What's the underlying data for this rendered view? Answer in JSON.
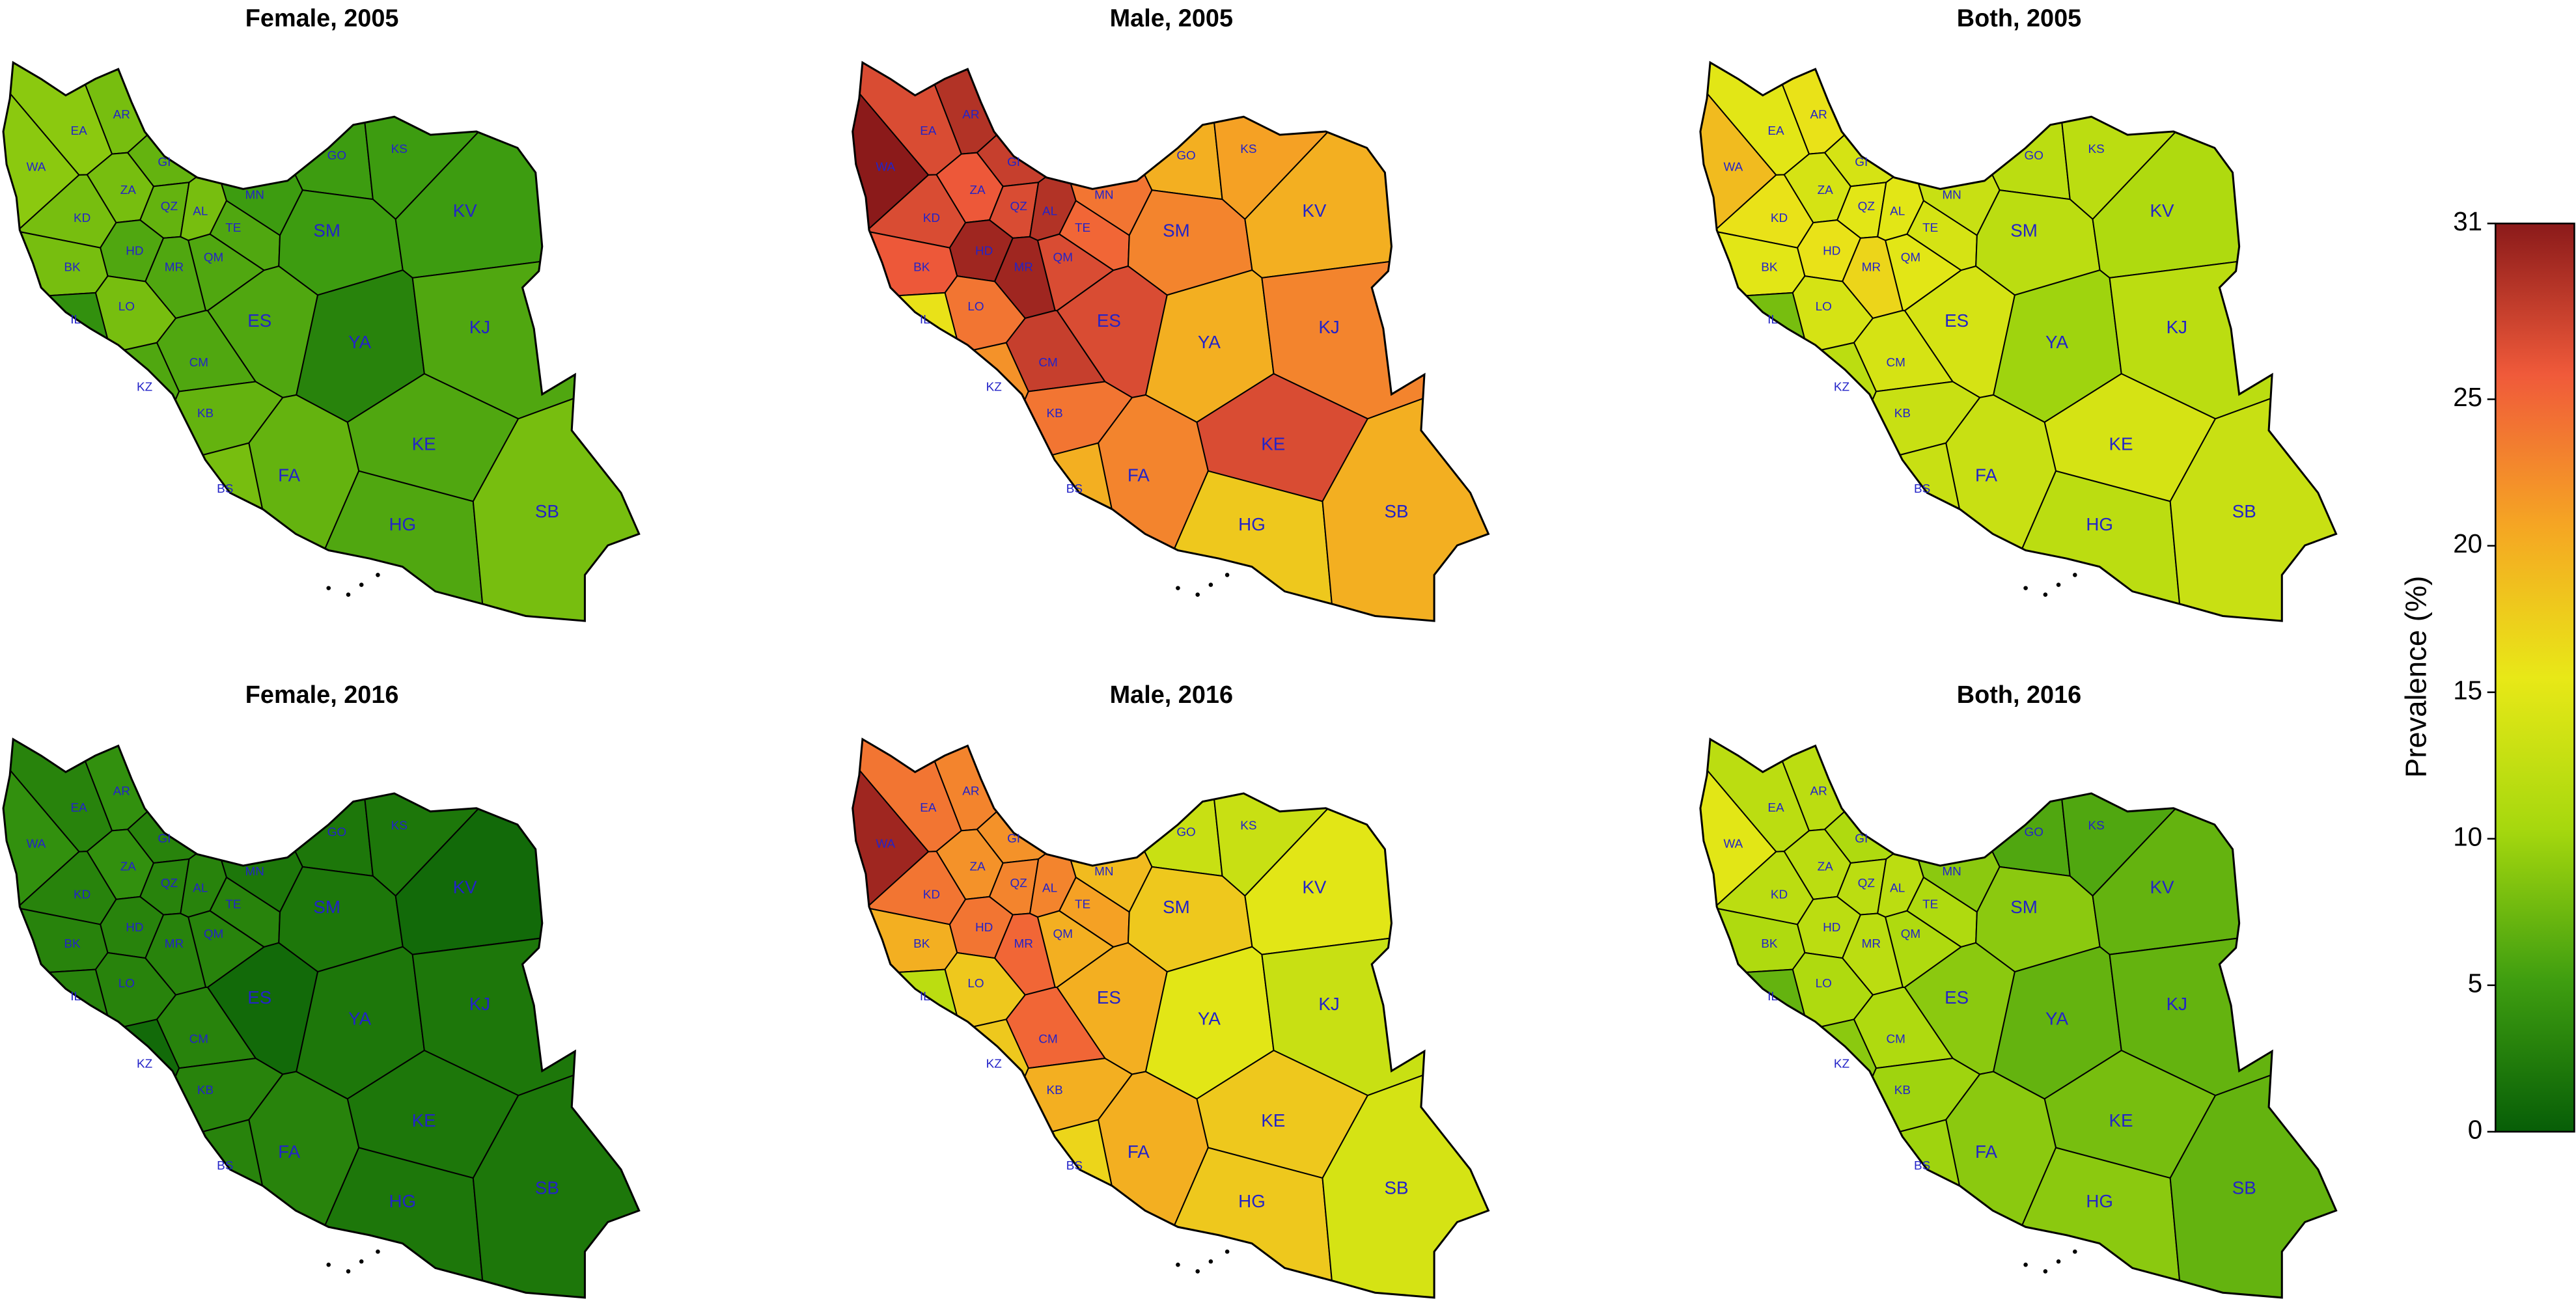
{
  "regions": [
    "EA",
    "AR",
    "WA",
    "GI",
    "ZA",
    "KD",
    "QZ",
    "AL",
    "TE",
    "MN",
    "GO",
    "KS",
    "SM",
    "KV",
    "BK",
    "HD",
    "QM",
    "MR",
    "LO",
    "IL",
    "ES",
    "YA",
    "KJ",
    "CM",
    "KZ",
    "KB",
    "KE",
    "FA",
    "BS",
    "HG",
    "SB"
  ],
  "panels": [
    {
      "title": "Female, 2005",
      "values": [
        9,
        8,
        9,
        7,
        8,
        8,
        7,
        8,
        6,
        5,
        5,
        5,
        5,
        5,
        8,
        6,
        6,
        6,
        8,
        4,
        6,
        3,
        6,
        6,
        6,
        7,
        6,
        7,
        8,
        6,
        8
      ]
    },
    {
      "title": "Male, 2005",
      "values": [
        27,
        29,
        31,
        28,
        26,
        27,
        27,
        29,
        25,
        24,
        20,
        21,
        23,
        20,
        26,
        30,
        27,
        30,
        24,
        16,
        27,
        20,
        23,
        28,
        22,
        24,
        27,
        23,
        20,
        18,
        20
      ]
    },
    {
      "title": "Both, 2005",
      "values": [
        15,
        16,
        19,
        14,
        14,
        16,
        15,
        15,
        14,
        13,
        12,
        12,
        12,
        11,
        15,
        16,
        15,
        17,
        14,
        8,
        14,
        10,
        12,
        14,
        12,
        13,
        14,
        13,
        13,
        12,
        13
      ]
    },
    {
      "title": "Female, 2016",
      "values": [
        3,
        4,
        4,
        3,
        4,
        3,
        3,
        3,
        3,
        2,
        2,
        2,
        2,
        1,
        3,
        3,
        3,
        3,
        3,
        3,
        1,
        2,
        2,
        3,
        1,
        3,
        2,
        3,
        3,
        2,
        2
      ]
    },
    {
      "title": "Male, 2016",
      "values": [
        24,
        23,
        30,
        22,
        22,
        24,
        23,
        23,
        21,
        19,
        13,
        13,
        18,
        15,
        20,
        24,
        20,
        25,
        18,
        12,
        20,
        15,
        13,
        25,
        18,
        20,
        18,
        20,
        17,
        18,
        14
      ]
    },
    {
      "title": "Both, 2016",
      "values": [
        12,
        12,
        15,
        11,
        12,
        12,
        12,
        12,
        11,
        9,
        6,
        6,
        9,
        7,
        11,
        12,
        11,
        12,
        11,
        7,
        9,
        7,
        7,
        11,
        9,
        10,
        8,
        9,
        10,
        9,
        7
      ]
    }
  ],
  "colorbar": {
    "label": "Prevalence (%)",
    "lim": [
      0,
      31
    ],
    "ticks": [
      0,
      5,
      10,
      15,
      20,
      25,
      31
    ],
    "colors": [
      "#075e07",
      "#3f9e10",
      "#a6d80e",
      "#e8e817",
      "#f5a623",
      "#f05a3a",
      "#8b1a1a"
    ]
  }
}
